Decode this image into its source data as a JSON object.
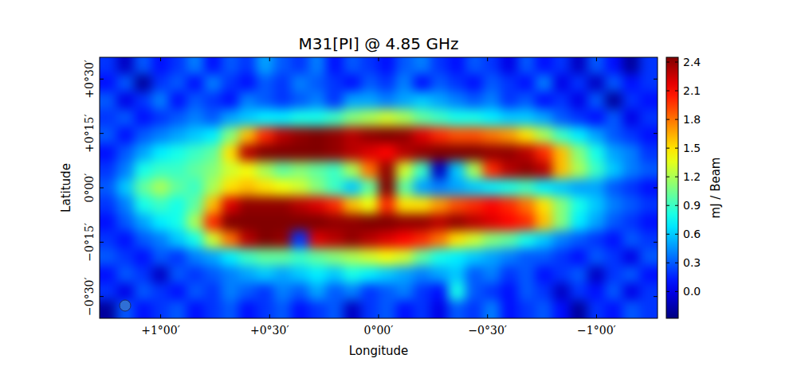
{
  "chart_data": {
    "type": "heatmap",
    "title": "M31[PI] @ 4.85 GHz",
    "x_label": "Longitude",
    "y_label": "Latitude",
    "xlim": [
      1.28,
      -1.28
    ],
    "ylim": [
      -0.6,
      0.6
    ],
    "xticks": [
      {
        "value": 1,
        "label": "+1°00′"
      },
      {
        "value": 0.5,
        "label": "+0°30′"
      },
      {
        "value": 0,
        "label": "0°00′"
      },
      {
        "value": -0.5,
        "label": "−0°30′"
      },
      {
        "value": -1,
        "label": "−1°00′"
      }
    ],
    "yticks": [
      {
        "value": 0.5,
        "label": "+0°30′"
      },
      {
        "value": 0.25,
        "label": "+0°15′"
      },
      {
        "value": 0,
        "label": "0°00′"
      },
      {
        "value": -0.25,
        "label": "−0°15′"
      },
      {
        "value": -0.5,
        "label": "−0°30′"
      }
    ],
    "color": "jet",
    "x": [
      1.24,
      1.16,
      1.08,
      1.0,
      0.92,
      0.84,
      0.76,
      0.68,
      0.6,
      0.52,
      0.44,
      0.36,
      0.28,
      0.2,
      0.12,
      0.04,
      -0.04,
      -0.12,
      -0.2,
      -0.28,
      -0.36,
      -0.44,
      -0.52,
      -0.6,
      -0.68,
      -0.76,
      -0.84,
      -0.92,
      -1.0,
      -1.08,
      -1.16,
      -1.24
    ],
    "y": [
      0.56,
      0.48,
      0.4,
      0.32,
      0.24,
      0.16,
      0.08,
      0,
      -0.08,
      -0.16,
      -0.24,
      -0.32,
      -0.4,
      -0.48,
      -0.56
    ],
    "z": [
      [
        0.2,
        -0.1,
        0.3,
        0.1,
        0.2,
        0.4,
        0.1,
        0.3,
        0.2,
        0.5,
        0.3,
        0.2,
        0.4,
        0.1,
        0.3,
        0.2,
        0.1,
        0.3,
        0.4,
        0.2,
        0.1,
        0.3,
        0.2,
        0.0,
        0.3,
        0.1,
        0.2,
        -0.1,
        0.3,
        0.1,
        -0.2,
        0.2
      ],
      [
        0.1,
        0.3,
        -0.2,
        0.2,
        0.3,
        0.1,
        0.4,
        0.2,
        0.1,
        0.3,
        0.2,
        0.4,
        0.3,
        0.2,
        0.1,
        0.3,
        0.2,
        0.4,
        0.1,
        0.3,
        0.2,
        0.1,
        0.3,
        0.2,
        0.1,
        0.4,
        0.0,
        0.2,
        -0.1,
        0.3,
        0.1,
        0.2
      ],
      [
        0.3,
        0.0,
        0.2,
        0.4,
        0.1,
        0.3,
        0.2,
        0.1,
        0.4,
        0.3,
        0.2,
        0.3,
        0.4,
        0.2,
        0.5,
        0.5,
        0.4,
        0.5,
        0.6,
        0.5,
        0.4,
        0.3,
        0.4,
        0.2,
        0.3,
        0.1,
        0.2,
        0.0,
        0.3,
        -0.2,
        0.2,
        0.1
      ],
      [
        0.2,
        0.3,
        0.1,
        0.2,
        0.3,
        0.4,
        0.3,
        0.5,
        0.6,
        0.7,
        0.7,
        0.8,
        0.8,
        0.9,
        1.1,
        1.2,
        1.3,
        1.2,
        1.0,
        0.9,
        0.8,
        0.8,
        0.7,
        0.6,
        0.6,
        0.5,
        0.3,
        0.2,
        0.1,
        0.3,
        0.0,
        0.2
      ],
      [
        0.3,
        0.1,
        0.3,
        0.4,
        0.5,
        0.6,
        0.7,
        1.1,
        1.6,
        2.0,
        2.3,
        2.4,
        2.5,
        2.4,
        2.3,
        2.4,
        2.5,
        2.4,
        2.2,
        2.0,
        1.9,
        1.9,
        1.8,
        1.7,
        1.5,
        1.2,
        0.9,
        0.7,
        0.5,
        0.3,
        0.2,
        0.1
      ],
      [
        0.1,
        0.3,
        0.5,
        0.7,
        0.8,
        0.9,
        1.0,
        1.5,
        2.3,
        2.5,
        2.5,
        2.5,
        2.5,
        2.4,
        2.3,
        2.2,
        2.1,
        2.3,
        2.4,
        2.5,
        2.5,
        2.5,
        2.4,
        2.4,
        2.3,
        2.0,
        1.6,
        1.1,
        0.8,
        0.5,
        0.4,
        0.2
      ],
      [
        0.2,
        0.4,
        0.8,
        0.9,
        0.9,
        1.0,
        1.1,
        1.3,
        1.4,
        1.2,
        1.0,
        1.1,
        1.0,
        0.9,
        1.2,
        1.8,
        2.4,
        1.3,
        0.9,
        -0.1,
        0.6,
        1.2,
        2.0,
        2.3,
        2.4,
        2.3,
        1.6,
        1.2,
        0.9,
        0.6,
        0.4,
        0.3
      ],
      [
        0.3,
        0.6,
        1.0,
        1.2,
        1.0,
        0.9,
        1.2,
        1.5,
        1.6,
        1.5,
        1.4,
        1.3,
        1.1,
        0.9,
        0.6,
        1.0,
        2.5,
        1.0,
        0.5,
        0.4,
        0.5,
        0.6,
        0.7,
        0.8,
        0.9,
        0.7,
        0.6,
        0.5,
        0.5,
        0.3,
        0.2,
        0.1
      ],
      [
        0.2,
        0.4,
        0.8,
        0.9,
        0.8,
        1.0,
        1.6,
        2.2,
        2.4,
        2.4,
        2.4,
        2.3,
        2.2,
        2.0,
        1.6,
        1.4,
        2.0,
        1.5,
        1.5,
        1.7,
        1.9,
        2.0,
        2.1,
        2.0,
        1.8,
        1.5,
        1.1,
        0.8,
        0.6,
        0.4,
        0.3,
        0.2
      ],
      [
        0.1,
        0.3,
        0.5,
        0.7,
        0.8,
        1.2,
        2.0,
        2.5,
        2.5,
        2.5,
        2.5,
        2.5,
        2.5,
        2.4,
        2.4,
        2.5,
        2.5,
        2.4,
        2.4,
        2.3,
        2.4,
        2.3,
        2.2,
        2.1,
        2.0,
        1.6,
        1.1,
        0.7,
        0.5,
        0.3,
        0.2,
        0.1
      ],
      [
        0.2,
        0.1,
        0.3,
        0.4,
        0.6,
        0.8,
        1.3,
        1.8,
        2.3,
        2.5,
        2.4,
        0.2,
        2.2,
        2.3,
        2.4,
        2.3,
        2.2,
        2.1,
        2.0,
        1.8,
        1.5,
        1.3,
        1.1,
        1.0,
        0.8,
        0.6,
        0.4,
        0.3,
        0.2,
        0.1,
        0.3,
        0.2
      ],
      [
        0.3,
        0.2,
        0.1,
        0.3,
        0.2,
        0.4,
        0.5,
        0.7,
        0.9,
        1.0,
        1.0,
        0.9,
        1.0,
        1.1,
        1.2,
        1.3,
        1.4,
        1.3,
        1.0,
        0.8,
        0.7,
        0.6,
        0.5,
        0.4,
        0.3,
        0.3,
        0.2,
        0.1,
        0.3,
        0.2,
        0.0,
        0.3
      ],
      [
        0.1,
        0.3,
        0.2,
        -0.1,
        0.3,
        0.2,
        0.3,
        0.4,
        0.5,
        0.6,
        0.5,
        0.6,
        0.7,
        0.6,
        0.8,
        0.7,
        0.6,
        0.5,
        0.4,
        0.5,
        0.6,
        0.3,
        0.4,
        0.2,
        0.3,
        0.1,
        0.2,
        0.3,
        -0.1,
        0.2,
        0.3,
        0.1
      ],
      [
        0.2,
        0.0,
        0.3,
        0.2,
        0.1,
        0.3,
        0.2,
        0.4,
        0.3,
        0.2,
        0.4,
        0.3,
        0.5,
        0.3,
        0.4,
        0.2,
        0.3,
        0.4,
        0.2,
        0.1,
        0.8,
        0.3,
        0.2,
        0.1,
        0.3,
        0.2,
        -0.1,
        0.2,
        0.1,
        0.3,
        0.0,
        0.2
      ],
      [
        -0.2,
        0.3,
        0.1,
        0.2,
        0.3,
        0.1,
        0.2,
        0.3,
        0.1,
        0.2,
        0.3,
        0.1,
        0.2,
        0.3,
        -0.1,
        0.2,
        0.3,
        0.1,
        0.2,
        0.0,
        0.3,
        0.2,
        0.4,
        0.1,
        0.2,
        0.3,
        0.1,
        -0.2,
        0.2,
        0.1,
        0.3,
        0.2
      ]
    ],
    "colorbar": {
      "label": "mJ / Beam",
      "range": [
        -0.28,
        2.45
      ],
      "ticks": [
        {
          "value": 0,
          "label": "0.0"
        },
        0.3,
        0.6,
        0.9,
        1.2,
        1.5,
        1.8,
        2.1,
        2.4
      ]
    }
  }
}
